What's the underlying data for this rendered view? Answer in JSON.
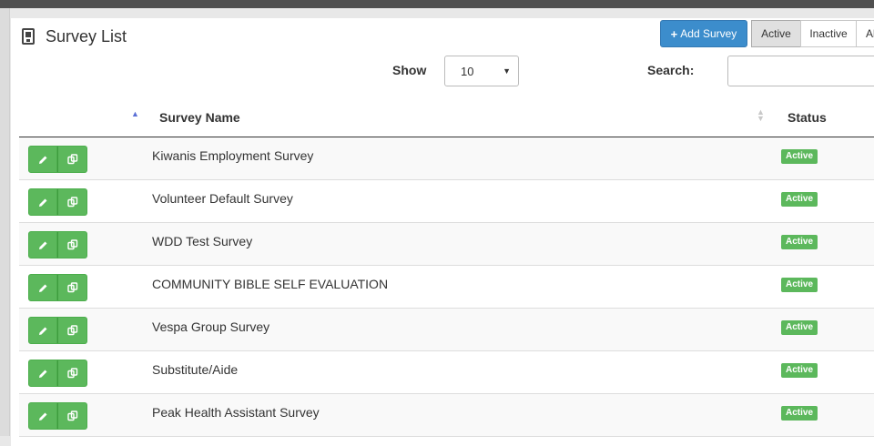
{
  "header": {
    "title": "Survey List",
    "add_button": "Add Survey",
    "filters": [
      "Active",
      "Inactive",
      "All"
    ]
  },
  "controls": {
    "show_label": "Show",
    "show_value": "10",
    "search_label": "Search:",
    "search_value": ""
  },
  "table": {
    "columns": [
      "Survey Name",
      "Status"
    ],
    "rows": [
      {
        "name": "Kiwanis Employment Survey",
        "status": "Active"
      },
      {
        "name": "Volunteer Default Survey",
        "status": "Active"
      },
      {
        "name": "WDD Test Survey",
        "status": "Active"
      },
      {
        "name": "COMMUNITY BIBLE SELF EVALUATION",
        "status": "Active"
      },
      {
        "name": "Vespa Group Survey",
        "status": "Active"
      },
      {
        "name": "Substitute/Aide",
        "status": "Active"
      },
      {
        "name": "Peak Health Assistant Survey",
        "status": "Active"
      }
    ]
  },
  "icons": {
    "title": "survey-document-icon",
    "edit": "pencil-icon",
    "copy": "copy-icon",
    "sort_asc": "sort-asc-icon",
    "sort_both": "sort-both-icon",
    "select_caret": "caret-down-icon"
  },
  "colors": {
    "primary": "#3c8dcc",
    "success": "#5cb85c",
    "active_filter_bg": "#e0e0e0"
  }
}
